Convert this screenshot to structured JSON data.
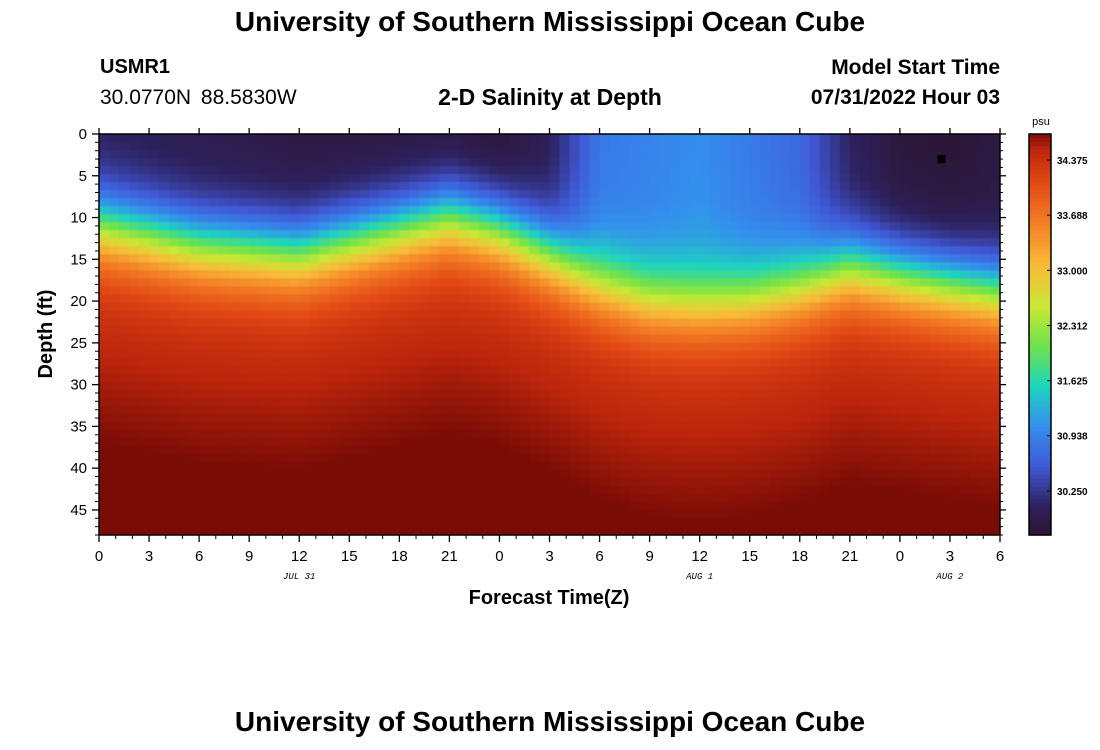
{
  "header": {
    "title": "University of Southern Mississippi Ocean Cube",
    "station_id": "USMR1",
    "coordinates": "30.0770N  88.5830W",
    "subtitle": "2-D Salinity at Depth",
    "model_start_label": "Model Start Time",
    "model_start_value": "07/31/2022 Hour 03"
  },
  "footer": {
    "title": "University of Southern Mississippi Ocean Cube"
  },
  "chart_data": {
    "type": "heatmap",
    "title": "2-D Salinity at Depth",
    "xlabel": "Forecast Time(Z)",
    "ylabel": "Depth (ft)",
    "x_hours": [
      0,
      54
    ],
    "x_tick_labels": [
      "0",
      "3",
      "6",
      "9",
      "12",
      "15",
      "18",
      "21",
      "0",
      "3",
      "6",
      "9",
      "12",
      "15",
      "18",
      "21",
      "0",
      "3",
      "6"
    ],
    "date_labels": [
      {
        "text": "JUL 31",
        "hour": 12
      },
      {
        "text": "AUG 1",
        "hour": 36
      },
      {
        "text": "AUG 2",
        "hour": 51
      }
    ],
    "y_range": [
      0,
      48
    ],
    "y_ticks": [
      0,
      5,
      10,
      15,
      20,
      25,
      30,
      35,
      40,
      45
    ],
    "colorbar": {
      "unit": "psu",
      "min": 29.7,
      "max": 34.7,
      "tick_labels": [
        "34.375",
        "33.688",
        "33.000",
        "32.312",
        "31.625",
        "30.938",
        "30.250"
      ]
    },
    "halocline_depth_ft": [
      {
        "hour": 0,
        "depth": 11
      },
      {
        "hour": 6,
        "depth": 13.5
      },
      {
        "hour": 12,
        "depth": 14.5
      },
      {
        "hour": 18,
        "depth": 11.5
      },
      {
        "hour": 21,
        "depth": 10
      },
      {
        "hour": 24,
        "depth": 11.5
      },
      {
        "hour": 27,
        "depth": 14.5
      },
      {
        "hour": 30,
        "depth": 18
      },
      {
        "hour": 33,
        "depth": 20
      },
      {
        "hour": 36,
        "depth": 20.5
      },
      {
        "hour": 39,
        "depth": 20
      },
      {
        "hour": 42,
        "depth": 18.5
      },
      {
        "hour": 45,
        "depth": 16
      },
      {
        "hour": 48,
        "depth": 17
      },
      {
        "hour": 51,
        "depth": 18
      },
      {
        "hour": 54,
        "depth": 19
      }
    ],
    "surface_salinity_psu": [
      {
        "hour": 0,
        "value": 30.0
      },
      {
        "hour": 12,
        "value": 29.85
      },
      {
        "hour": 21,
        "value": 29.8
      },
      {
        "hour": 24,
        "value": 29.75
      },
      {
        "hour": 27,
        "value": 30.0
      },
      {
        "hour": 30,
        "value": 30.85
      },
      {
        "hour": 36,
        "value": 31.05
      },
      {
        "hour": 42,
        "value": 30.7
      },
      {
        "hour": 45,
        "value": 30.05
      },
      {
        "hour": 48,
        "value": 29.8
      },
      {
        "hour": 51,
        "value": 29.75
      },
      {
        "hour": 54,
        "value": 29.85
      }
    ],
    "deep_salinity_psu": 34.35,
    "bottom_max": {
      "hour": 15.5,
      "depth": 48,
      "value": 34.65
    },
    "marker": {
      "hour": 50.5,
      "depth": 3
    }
  }
}
